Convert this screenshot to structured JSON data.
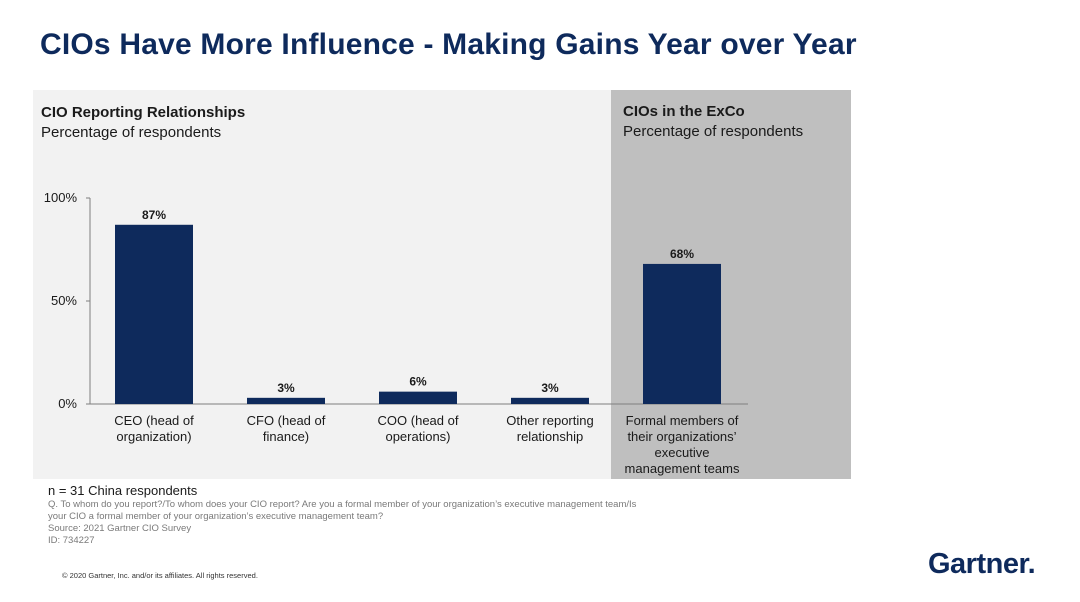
{
  "slide": {
    "title": "CIOs Have More Influence - Making Gains Year over Year"
  },
  "panels": {
    "left": {
      "heading": "CIO Reporting Relationships",
      "subheading": "Percentage of respondents"
    },
    "right": {
      "heading": "CIOs in the ExCo",
      "subheading": "Percentage of respondents"
    }
  },
  "colors": {
    "bar": "#0e2a5c",
    "left_panel_bg": "#f2f2f2",
    "right_panel_bg": "#bfbfbf",
    "title": "#0e2a5c"
  },
  "chart_data": {
    "type": "bar",
    "categories": [
      "CEO (head of organization)",
      "CFO (head of finance)",
      "COO (head of operations)",
      "Other reporting relationship",
      "Formal members of their organizations’ executive management teams"
    ],
    "category_lines": [
      [
        "CEO (head of",
        "organization)"
      ],
      [
        "CFO (head of",
        "finance)"
      ],
      [
        "COO (head of",
        "operations)"
      ],
      [
        "Other reporting",
        "relationship"
      ],
      [
        "Formal members of",
        "their organizations’",
        "executive",
        "management teams"
      ]
    ],
    "values": [
      87,
      3,
      6,
      3,
      68
    ],
    "value_labels": [
      "87%",
      "3%",
      "6%",
      "3%",
      "68%"
    ],
    "ylim": [
      0,
      100
    ],
    "yticks": [
      0,
      50,
      100
    ],
    "ytick_labels": [
      "0%",
      "50%",
      "100%"
    ],
    "grid": false,
    "legend": "none"
  },
  "footnotes": {
    "n": "n = 31 China respondents",
    "question_line1": "Q. To whom do you report?/To whom does your CIO report? Are you a formal member of your organization’s executive management team/Is",
    "question_line2": "your CIO a formal member of your organization’s executive management team?",
    "source": "Source: 2021 Gartner CIO Survey",
    "id": "ID: 734227"
  },
  "copyright": "© 2020 Gartner, Inc. and/or its affiliates. All rights reserved.",
  "logo": {
    "text": "Gartner",
    "mark": "."
  }
}
